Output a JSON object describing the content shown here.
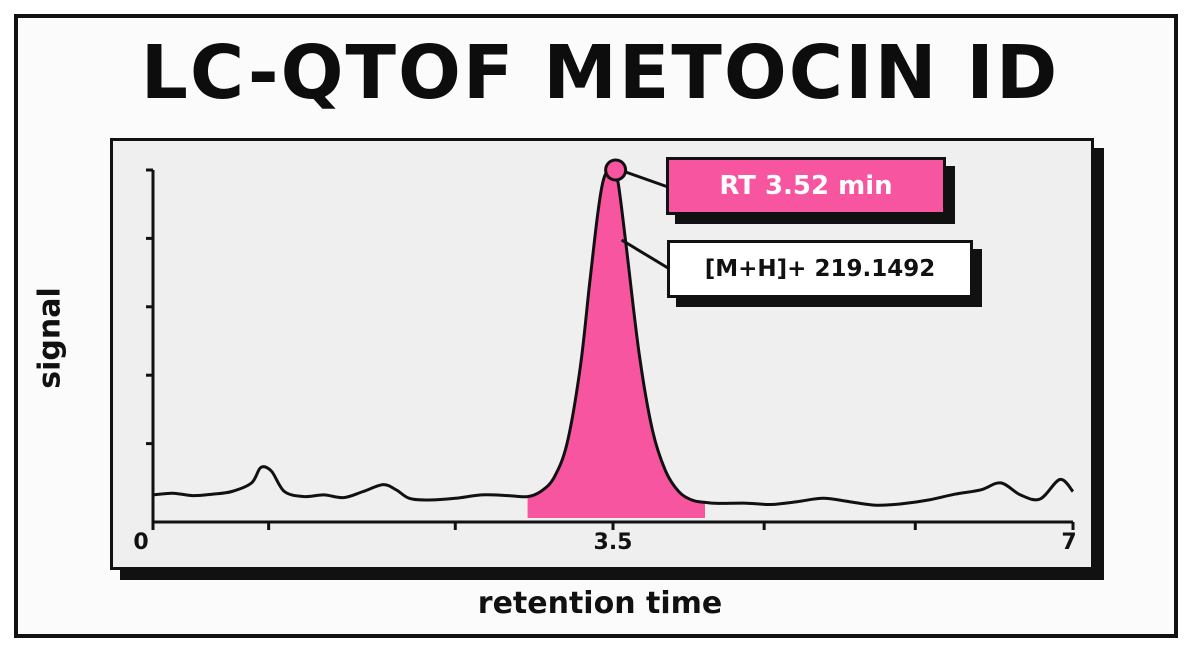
{
  "title": "LC-QTOF METOCIN ID",
  "colors": {
    "accent": "#f7559f",
    "ink": "#111111",
    "plot_bg": "#efefef"
  },
  "chart_data": {
    "type": "line",
    "title": "LC-QTOF METOCIN ID",
    "xlabel": "retention time",
    "ylabel": "signal",
    "xlim": [
      0,
      7
    ],
    "ylim": [
      0,
      1
    ],
    "x_tick_labels": [
      "0",
      "3.5",
      "7"
    ],
    "x_ticks": [
      0,
      0.88,
      2.3,
      3.5,
      4.65,
      5.8,
      7
    ],
    "y_ticks": [
      0.2,
      0.4,
      0.6,
      0.8,
      1.0
    ],
    "grid": false,
    "series": [
      {
        "x": [
          0,
          0.15,
          0.3,
          0.45,
          0.6,
          0.75,
          0.82,
          0.9,
          1.0,
          1.15,
          1.3,
          1.45,
          1.6,
          1.75,
          1.85,
          1.95,
          2.1,
          2.3,
          2.5,
          2.7,
          2.85,
          2.95,
          3.05,
          3.15,
          3.25,
          3.32,
          3.38,
          3.42,
          3.46,
          3.5,
          3.54,
          3.6,
          3.7,
          3.8,
          3.9,
          4.0,
          4.1,
          4.2,
          4.3,
          4.5,
          4.7,
          4.9,
          5.1,
          5.3,
          5.5,
          5.7,
          5.9,
          6.1,
          6.3,
          6.45,
          6.6,
          6.75,
          6.9,
          7.0
        ],
        "y": [
          0.05,
          0.055,
          0.048,
          0.052,
          0.06,
          0.085,
          0.13,
          0.12,
          0.06,
          0.045,
          0.05,
          0.042,
          0.06,
          0.08,
          0.065,
          0.04,
          0.035,
          0.04,
          0.05,
          0.048,
          0.045,
          0.06,
          0.1,
          0.2,
          0.42,
          0.66,
          0.86,
          0.96,
          1.0,
          1.0,
          0.96,
          0.78,
          0.46,
          0.24,
          0.12,
          0.06,
          0.035,
          0.028,
          0.025,
          0.026,
          0.022,
          0.03,
          0.04,
          0.03,
          0.02,
          0.024,
          0.035,
          0.052,
          0.065,
          0.085,
          0.05,
          0.038,
          0.095,
          0.06
        ]
      }
    ],
    "highlight": {
      "x_range": [
        2.85,
        4.2
      ],
      "color": "#f7559f"
    },
    "peak": {
      "x": 3.52,
      "y": 1.0
    },
    "annotations": [
      "RT 3.52 min",
      "[M+H]+ 219.1492"
    ]
  }
}
